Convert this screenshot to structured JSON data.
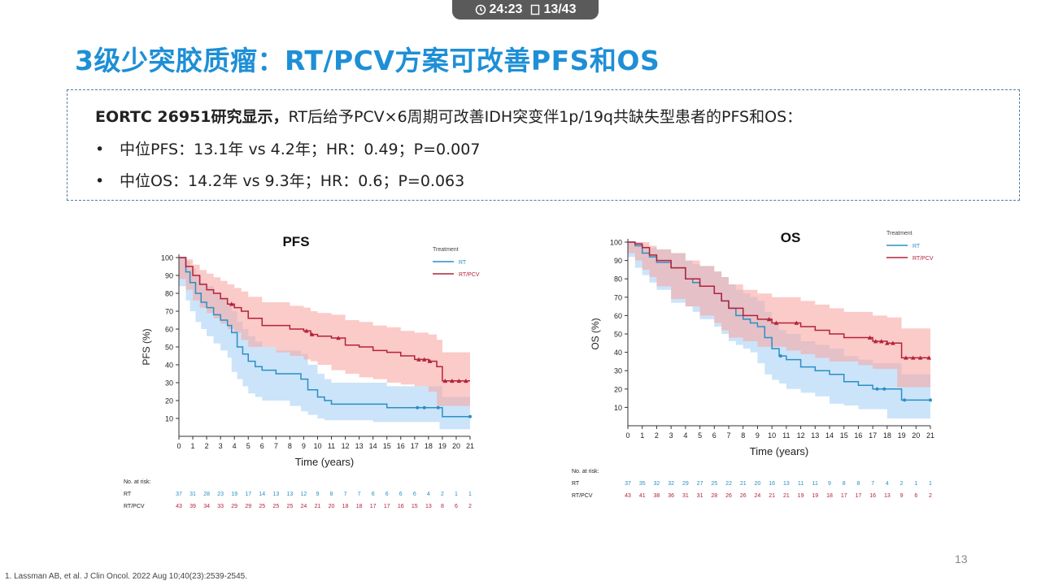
{
  "toolbar": {
    "timer": "24:23",
    "page": "13/43",
    "clock_icon": "clock-icon",
    "page_icon": "page-icon"
  },
  "slide": {
    "title": "3级少突胶质瘤：RT/PCV方案可改善PFS和OS",
    "intro_bold": "EORTC 26951研究显示，",
    "intro_rest": "RT后给予PCV×6周期可改善IDH突变伴1p/19q共缺失型患者的PFS和OS：",
    "bullets": [
      "中位PFS：13.1年 vs 4.2年；HR：0.49；P=0.007",
      "中位OS：14.2年 vs 9.3年；HR：0.6；P=0.063"
    ],
    "bullet_char": "•",
    "footnote": "1. Lassman AB, et al. J Clin Oncol. 2022 Aug 10;40(23):2539-2545.",
    "page_number": "13"
  },
  "colors": {
    "title": "#1e8fd6",
    "rt": "#2a8fc6",
    "rtpcv": "#b5213a",
    "rt_band": "#a9d2f5",
    "rtpcv_band": "#f6a9a4"
  },
  "chart_data": [
    {
      "type": "line",
      "title": "PFS",
      "xlabel": "Time (years)",
      "ylabel": "PFS (%)",
      "xlim": [
        0,
        21
      ],
      "ylim": [
        0,
        100
      ],
      "xticks": [
        0,
        1,
        2,
        3,
        4,
        5,
        6,
        7,
        8,
        9,
        10,
        11,
        12,
        13,
        14,
        15,
        16,
        17,
        18,
        19,
        20,
        21
      ],
      "yticks": [
        10,
        20,
        30,
        40,
        50,
        60,
        70,
        80,
        90,
        100
      ],
      "legend_title": "Treatment",
      "legend_placement": "top-right",
      "grid": false,
      "series": [
        {
          "name": "RT",
          "x": [
            0,
            0.5,
            0.8,
            1.2,
            1.6,
            2,
            2.5,
            3,
            3.5,
            3.8,
            4.2,
            4.6,
            5,
            5.5,
            6,
            7,
            8,
            8.8,
            9.3,
            10,
            10.5,
            11,
            12,
            13,
            14,
            15,
            16,
            17,
            18,
            18.8,
            19,
            20,
            21
          ],
          "y": [
            100,
            92,
            86,
            80,
            75,
            72,
            68,
            65,
            62,
            58,
            50,
            46,
            42,
            39,
            37,
            35,
            35,
            32,
            26,
            22,
            20,
            18,
            18,
            18,
            18,
            16,
            16,
            16,
            16,
            16,
            11,
            11,
            11
          ],
          "lower": [
            100,
            84,
            76,
            70,
            64,
            60,
            56,
            52,
            48,
            44,
            36,
            32,
            28,
            24,
            22,
            20,
            20,
            17,
            14,
            12,
            10,
            9,
            9,
            9,
            9,
            8,
            8,
            8,
            8,
            8,
            4,
            4,
            4
          ],
          "upper": [
            100,
            98,
            94,
            90,
            86,
            84,
            80,
            78,
            74,
            70,
            64,
            60,
            56,
            53,
            50,
            48,
            48,
            46,
            40,
            35,
            32,
            30,
            30,
            30,
            30,
            28,
            28,
            28,
            28,
            28,
            22,
            22,
            22
          ],
          "censor_x": [
            17.2,
            17.7,
            18.7,
            21
          ]
        },
        {
          "name": "RT/PCV",
          "x": [
            0,
            0.5,
            1,
            1.5,
            2,
            2.5,
            3,
            3.5,
            4,
            4.5,
            5,
            6,
            7,
            8,
            9,
            9.5,
            10,
            11,
            12,
            13,
            14,
            15,
            16,
            17,
            18,
            18.6,
            19,
            20,
            21
          ],
          "y": [
            100,
            95,
            90,
            85,
            82,
            80,
            77,
            74,
            72,
            70,
            66,
            62,
            62,
            60,
            59,
            57,
            56,
            55,
            51,
            50,
            48,
            47,
            45,
            43,
            42,
            39,
            31,
            31,
            31
          ],
          "lower": [
            100,
            88,
            82,
            76,
            72,
            69,
            66,
            63,
            60,
            58,
            54,
            50,
            50,
            47,
            45,
            43,
            42,
            40,
            37,
            35,
            33,
            32,
            30,
            29,
            28,
            25,
            17,
            17,
            17
          ],
          "upper": [
            100,
            99,
            96,
            93,
            91,
            89,
            87,
            85,
            83,
            81,
            78,
            75,
            75,
            73,
            72,
            70,
            69,
            68,
            65,
            64,
            62,
            61,
            59,
            58,
            57,
            54,
            47,
            47,
            47
          ],
          "censor_x": [
            3.8,
            9.2,
            9.6,
            11.5,
            17.3,
            17.7,
            18.1,
            19.2,
            19.7,
            20.2,
            20.7
          ]
        }
      ],
      "at_risk": {
        "label": "No. at risk:",
        "RT": [
          37,
          31,
          28,
          23,
          19,
          17,
          14,
          13,
          13,
          12,
          9,
          8,
          7,
          7,
          6,
          6,
          6,
          6,
          4,
          2,
          1,
          1
        ],
        "RT/PCV": [
          43,
          39,
          34,
          33,
          29,
          29,
          25,
          25,
          25,
          24,
          21,
          20,
          18,
          18,
          17,
          17,
          16,
          15,
          13,
          8,
          6,
          2
        ]
      }
    },
    {
      "type": "line",
      "title": "OS",
      "xlabel": "Time (years)",
      "ylabel": "OS (%)",
      "xlim": [
        0,
        21
      ],
      "ylim": [
        0,
        100
      ],
      "xticks": [
        0,
        1,
        2,
        3,
        4,
        5,
        6,
        7,
        8,
        9,
        10,
        11,
        12,
        13,
        14,
        15,
        16,
        17,
        18,
        19,
        20,
        21
      ],
      "yticks": [
        10,
        20,
        30,
        40,
        50,
        60,
        70,
        80,
        90,
        100
      ],
      "legend_title": "Treatment",
      "legend_placement": "top-right",
      "grid": false,
      "series": [
        {
          "name": "RT",
          "x": [
            0,
            0.5,
            1,
            1.5,
            2,
            3,
            4,
            4.5,
            5,
            6,
            6.5,
            7,
            7.5,
            8,
            8.5,
            9,
            9.5,
            10,
            10.5,
            11,
            12,
            13,
            14,
            15,
            16,
            17,
            18,
            19,
            20,
            21
          ],
          "y": [
            100,
            98,
            94,
            92,
            89,
            86,
            80,
            78,
            76,
            72,
            68,
            64,
            60,
            58,
            56,
            54,
            48,
            42,
            38,
            36,
            32,
            30,
            28,
            24,
            22,
            20,
            20,
            14,
            14,
            14
          ],
          "lower": [
            100,
            92,
            86,
            82,
            78,
            74,
            67,
            65,
            62,
            58,
            54,
            50,
            46,
            44,
            42,
            40,
            34,
            28,
            25,
            23,
            20,
            18,
            16,
            12,
            11,
            9,
            9,
            4,
            4,
            4
          ],
          "upper": [
            100,
            100,
            98,
            97,
            96,
            94,
            90,
            88,
            87,
            84,
            81,
            77,
            74,
            72,
            70,
            68,
            62,
            56,
            52,
            50,
            46,
            44,
            42,
            38,
            36,
            34,
            34,
            28,
            28,
            28
          ]
        },
        {
          "name": "RT/PCV",
          "x": [
            0,
            0.5,
            1,
            1.5,
            2,
            3,
            4,
            5,
            6,
            6.5,
            7,
            8,
            9,
            10,
            11,
            12,
            13,
            14,
            15,
            16,
            17,
            18,
            18.7,
            19,
            20,
            21
          ],
          "y": [
            100,
            99,
            97,
            93,
            90,
            86,
            80,
            76,
            72,
            68,
            64,
            60,
            58,
            56,
            56,
            54,
            52,
            50,
            48,
            48,
            46,
            45,
            45,
            37,
            37,
            37
          ],
          "lower": [
            100,
            94,
            90,
            85,
            81,
            76,
            69,
            65,
            60,
            56,
            52,
            48,
            46,
            43,
            43,
            41,
            39,
            37,
            35,
            35,
            33,
            31,
            31,
            21,
            21,
            21
          ],
          "upper": [
            100,
            100,
            100,
            98,
            96,
            94,
            90,
            87,
            84,
            81,
            77,
            74,
            72,
            70,
            70,
            68,
            66,
            64,
            62,
            62,
            60,
            59,
            59,
            53,
            53,
            53
          ],
          "censor_x": [
            9.8,
            10.3,
            11.7,
            16.8,
            17.2,
            17.6,
            18.0,
            18.4,
            19.3,
            19.8,
            20.3,
            20.9
          ]
        }
      ],
      "rt_censor": [
        10.6,
        17.3,
        17.8,
        19.2,
        21
      ],
      "at_risk": {
        "label": "No. at risk:",
        "RT": [
          37,
          35,
          32,
          32,
          29,
          27,
          25,
          22,
          21,
          20,
          16,
          13,
          11,
          11,
          9,
          8,
          8,
          7,
          4,
          2,
          1,
          1
        ],
        "RT/PCV": [
          43,
          41,
          38,
          36,
          31,
          31,
          28,
          26,
          26,
          24,
          21,
          21,
          19,
          19,
          18,
          17,
          17,
          16,
          13,
          9,
          6,
          2
        ]
      }
    }
  ]
}
